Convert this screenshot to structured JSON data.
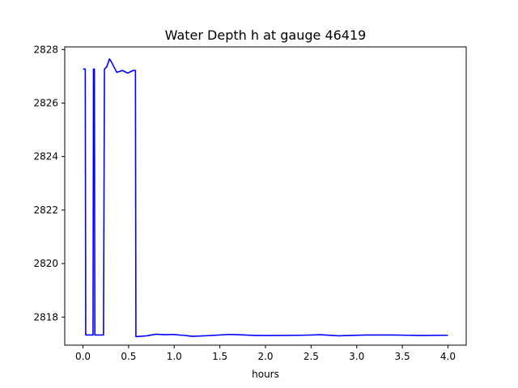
{
  "chart_data": {
    "type": "line",
    "title": "Water Depth h at gauge 46419",
    "xlabel": "hours",
    "ylabel": "",
    "xlim": [
      -0.2,
      4.2
    ],
    "ylim": [
      2816.95,
      2828.1
    ],
    "xticks": [
      0.0,
      0.5,
      1.0,
      1.5,
      2.0,
      2.5,
      3.0,
      3.5,
      4.0
    ],
    "xtick_labels": [
      "0.0",
      "0.5",
      "1.0",
      "1.5",
      "2.0",
      "2.5",
      "3.0",
      "3.5",
      "4.0"
    ],
    "yticks": [
      2818,
      2820,
      2822,
      2824,
      2826,
      2828
    ],
    "ytick_labels": [
      "2818",
      "2820",
      "2822",
      "2824",
      "2826",
      "2828"
    ],
    "grid": false,
    "series": [
      {
        "name": "",
        "color": "#0000ff",
        "x": [
          0.0,
          0.025,
          0.03,
          0.11,
          0.115,
          0.125,
          0.13,
          0.14,
          0.225,
          0.235,
          0.26,
          0.29,
          0.31,
          0.34,
          0.37,
          0.4,
          0.43,
          0.46,
          0.49,
          0.52,
          0.55,
          0.575,
          0.58,
          0.59,
          0.7,
          0.8,
          0.9,
          1.0,
          1.05,
          1.1,
          1.15,
          1.2,
          1.4,
          1.6,
          1.7,
          1.9,
          2.1,
          2.4,
          2.6,
          2.8,
          3.1,
          3.4,
          3.7,
          4.0
        ],
        "y": [
          2827.27,
          2827.27,
          2817.33,
          2817.33,
          2827.27,
          2827.27,
          2817.33,
          2817.33,
          2817.33,
          2827.27,
          2827.35,
          2827.65,
          2827.55,
          2827.35,
          2827.15,
          2827.18,
          2827.22,
          2827.17,
          2827.12,
          2827.17,
          2827.22,
          2827.22,
          2817.27,
          2817.27,
          2817.3,
          2817.36,
          2817.34,
          2817.35,
          2817.33,
          2817.32,
          2817.3,
          2817.28,
          2817.31,
          2817.35,
          2817.34,
          2817.31,
          2817.31,
          2817.32,
          2817.34,
          2817.3,
          2817.33,
          2817.33,
          2817.31,
          2817.32
        ]
      }
    ]
  }
}
